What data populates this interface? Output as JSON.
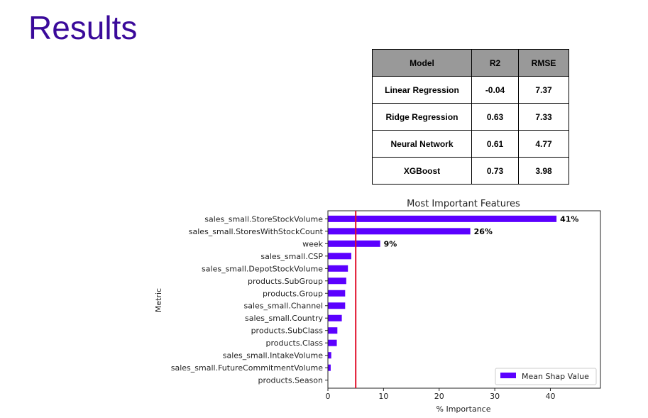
{
  "slide": {
    "title": "Results"
  },
  "results_table": {
    "headers": [
      "Model",
      "R2",
      "RMSE"
    ],
    "rows": [
      [
        "Linear Regression",
        "-0.04",
        "7.37"
      ],
      [
        "Ridge Regression",
        "0.63",
        "7.33"
      ],
      [
        "Neural Network",
        "0.61",
        "4.77"
      ],
      [
        "XGBoost",
        "0.73",
        "3.98"
      ]
    ]
  },
  "chart_data": {
    "type": "bar",
    "orientation": "horizontal",
    "title": "Most Important Features",
    "xlabel": "% Importance",
    "ylabel": "Metric",
    "xlim": [
      0,
      49
    ],
    "xticks": [
      0,
      10,
      20,
      30,
      40
    ],
    "grid": false,
    "legend_position": "bottom-right",
    "categories": [
      "sales_small.StoreStockVolume",
      "sales_small.StoresWithStockCount",
      "week",
      "sales_small.CSP",
      "sales_small.DepotStockVolume",
      "products.SubGroup",
      "products.Group",
      "sales_small.Channel",
      "sales_small.Country",
      "products.SubClass",
      "products.Class",
      "sales_small.IntakeVolume",
      "sales_small.FutureCommitmentVolume",
      "products.Season"
    ],
    "series": [
      {
        "name": "Mean Shap Value",
        "color": "#5b00ff",
        "values": [
          41.1,
          25.6,
          9.4,
          4.2,
          3.6,
          3.3,
          3.1,
          3.1,
          2.5,
          1.7,
          1.6,
          0.6,
          0.5,
          0.05
        ],
        "data_labels": [
          "41%",
          "26%",
          "9%",
          "",
          "",
          "",
          "",
          "",
          "",
          "",
          "",
          "",
          "",
          ""
        ]
      }
    ],
    "reference_line": {
      "x": 5,
      "color": "#e0102a"
    }
  }
}
